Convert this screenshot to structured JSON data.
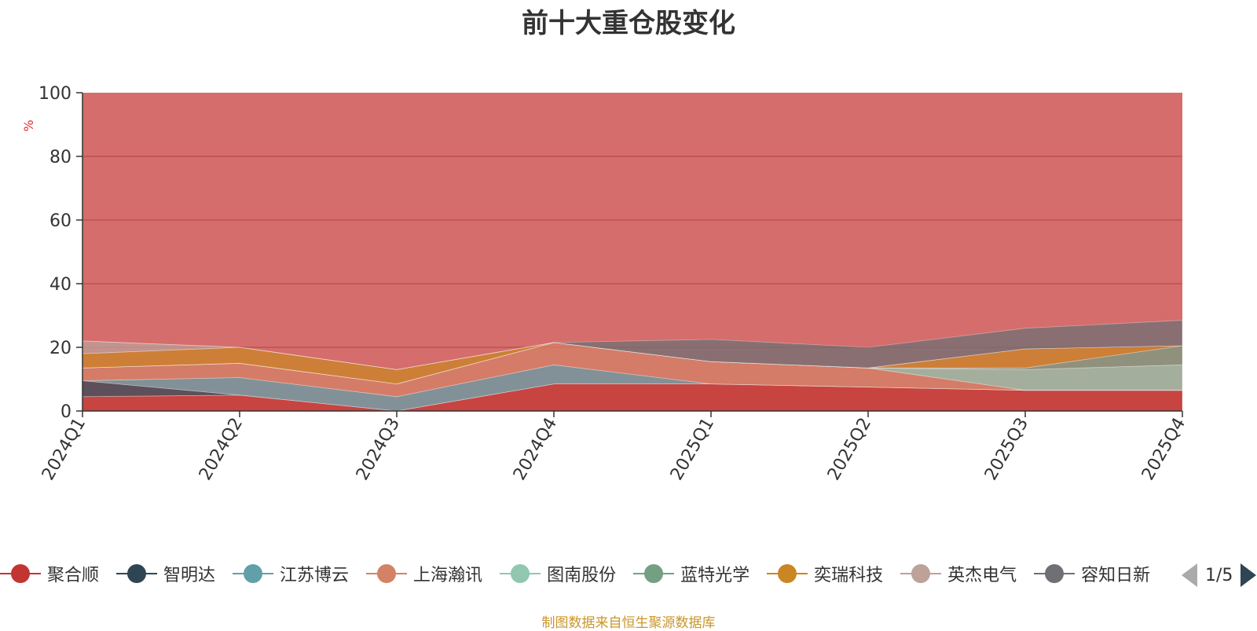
{
  "chart_data": {
    "type": "area",
    "stacked": "themeriver",
    "title": "前十大重仓股变化",
    "ylabel": "%",
    "ylim": [
      0,
      100
    ],
    "y_ticks": [
      "0",
      "20",
      "40",
      "60",
      "80",
      "100"
    ],
    "categories": [
      "2024Q1",
      "2024Q2",
      "2024Q3",
      "2024Q4",
      "2025Q1",
      "2025Q2",
      "2025Q3",
      "2025Q4"
    ],
    "series": [
      {
        "name": "聚合顺",
        "color": "#c23531",
        "values": [
          4.5,
          5.0,
          0.0,
          8.5,
          8.5,
          7.5,
          6.5,
          6.5
        ]
      },
      {
        "name": "智明达",
        "color": "#2f4554",
        "values": [
          5.0,
          0.0,
          0.0,
          0.0,
          0.0,
          0.0,
          0.0,
          0.0
        ]
      },
      {
        "name": "江苏博云",
        "color": "#61a0a8",
        "values": [
          0.0,
          5.5,
          4.5,
          6.0,
          0.0,
          0.0,
          0.0,
          0.0
        ]
      },
      {
        "name": "上海瀚讯",
        "color": "#d48265",
        "values": [
          4.0,
          4.5,
          4.0,
          7.0,
          7.0,
          6.0,
          0.0,
          0.0
        ]
      },
      {
        "name": "图南股份",
        "color": "#91c7ae",
        "values": [
          0.0,
          0.0,
          0.0,
          0.0,
          0.0,
          0.0,
          6.5,
          8.0
        ]
      },
      {
        "name": "蓝特光学",
        "color": "#749f83",
        "values": [
          0.0,
          0.0,
          0.0,
          0.0,
          0.0,
          0.0,
          0.5,
          6.0
        ]
      },
      {
        "name": "奕瑞科技",
        "color": "#ca8622",
        "values": [
          4.5,
          5.0,
          4.5,
          0.0,
          0.0,
          0.0,
          6.0,
          0.0
        ]
      },
      {
        "name": "英杰电气",
        "color": "#bda29a",
        "values": [
          4.0,
          0.0,
          0.0,
          0.0,
          0.0,
          0.0,
          0.0,
          0.0
        ]
      },
      {
        "name": "容知日新",
        "color": "#6e7074",
        "values": [
          0.0,
          0.0,
          0.0,
          0.0,
          7.0,
          6.5,
          6.5,
          8.0
        ]
      }
    ]
  },
  "legend": {
    "page": "1/5"
  },
  "source_note": "制图数据来自恒生聚源数据库"
}
